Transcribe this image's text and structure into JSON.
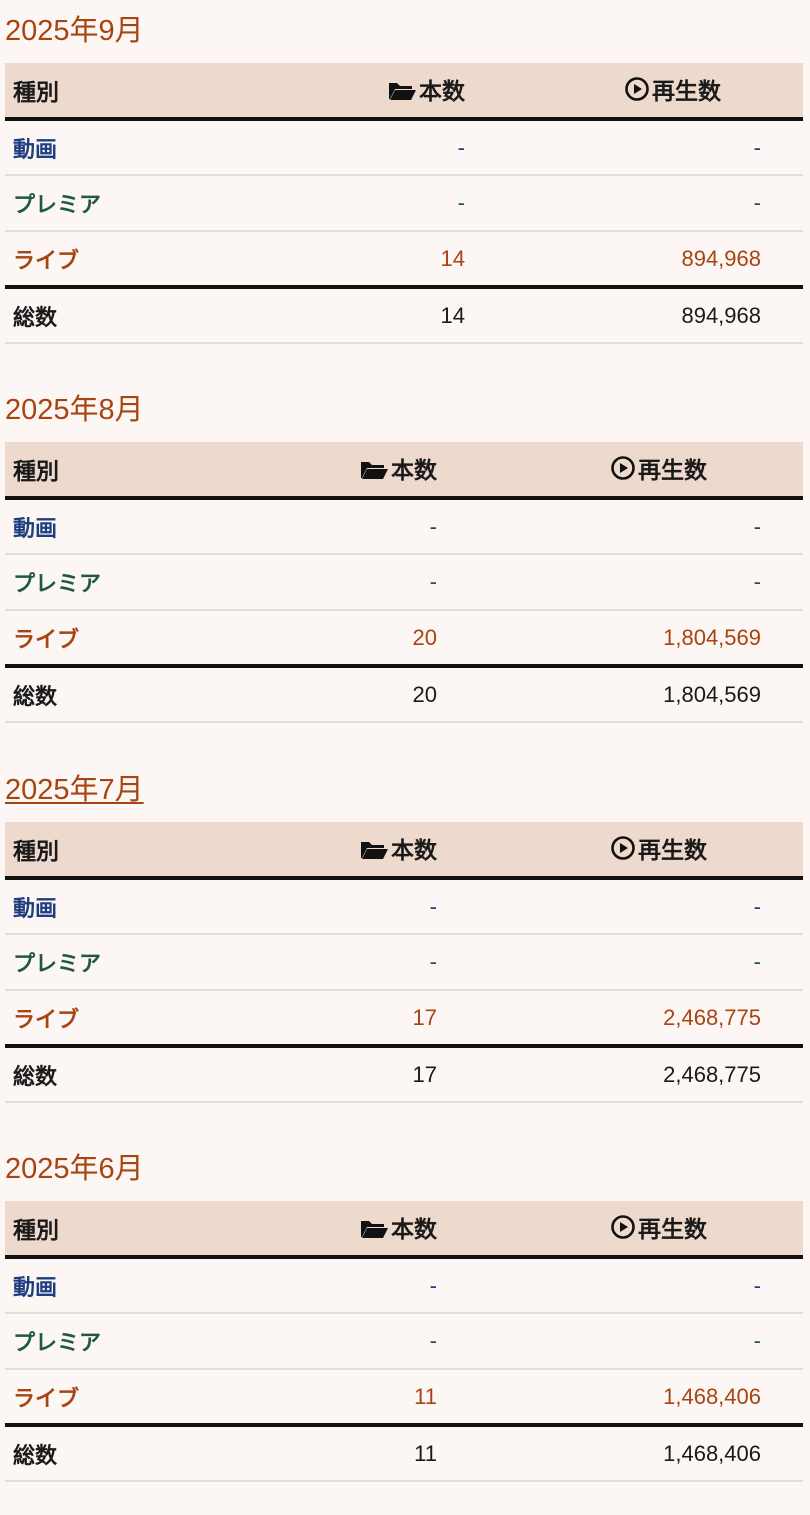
{
  "headers": {
    "type": "種別",
    "count": "本数",
    "views": "再生数",
    "count_icon": "folder-open-icon",
    "views_icon": "play-circle-icon"
  },
  "row_labels": {
    "video": "動画",
    "premiere": "プレミア",
    "live": "ライブ",
    "total": "総数"
  },
  "colors": {
    "title": "#a84410",
    "header_bg": "#eddacd",
    "video": "#1e3e80",
    "premiere": "#1f5a3a",
    "live": "#a84410",
    "total": "#1a1a1a"
  },
  "months": [
    {
      "title": "2025年9月",
      "video": {
        "count": "-",
        "views": "-"
      },
      "premiere": {
        "count": "-",
        "views": "-"
      },
      "live": {
        "count": "14",
        "views": "894,968"
      },
      "total": {
        "count": "14",
        "views": "894,968"
      }
    },
    {
      "title": "2025年8月",
      "video": {
        "count": "-",
        "views": "-"
      },
      "premiere": {
        "count": "-",
        "views": "-"
      },
      "live": {
        "count": "20",
        "views": "1,804,569"
      },
      "total": {
        "count": "20",
        "views": "1,804,569"
      }
    },
    {
      "title": "2025年7月",
      "video": {
        "count": "-",
        "views": "-"
      },
      "premiere": {
        "count": "-",
        "views": "-"
      },
      "live": {
        "count": "17",
        "views": "2,468,775"
      },
      "total": {
        "count": "17",
        "views": "2,468,775"
      }
    },
    {
      "title": "2025年6月",
      "video": {
        "count": "-",
        "views": "-"
      },
      "premiere": {
        "count": "-",
        "views": "-"
      },
      "live": {
        "count": "11",
        "views": "1,468,406"
      },
      "total": {
        "count": "11",
        "views": "1,468,406"
      }
    }
  ]
}
